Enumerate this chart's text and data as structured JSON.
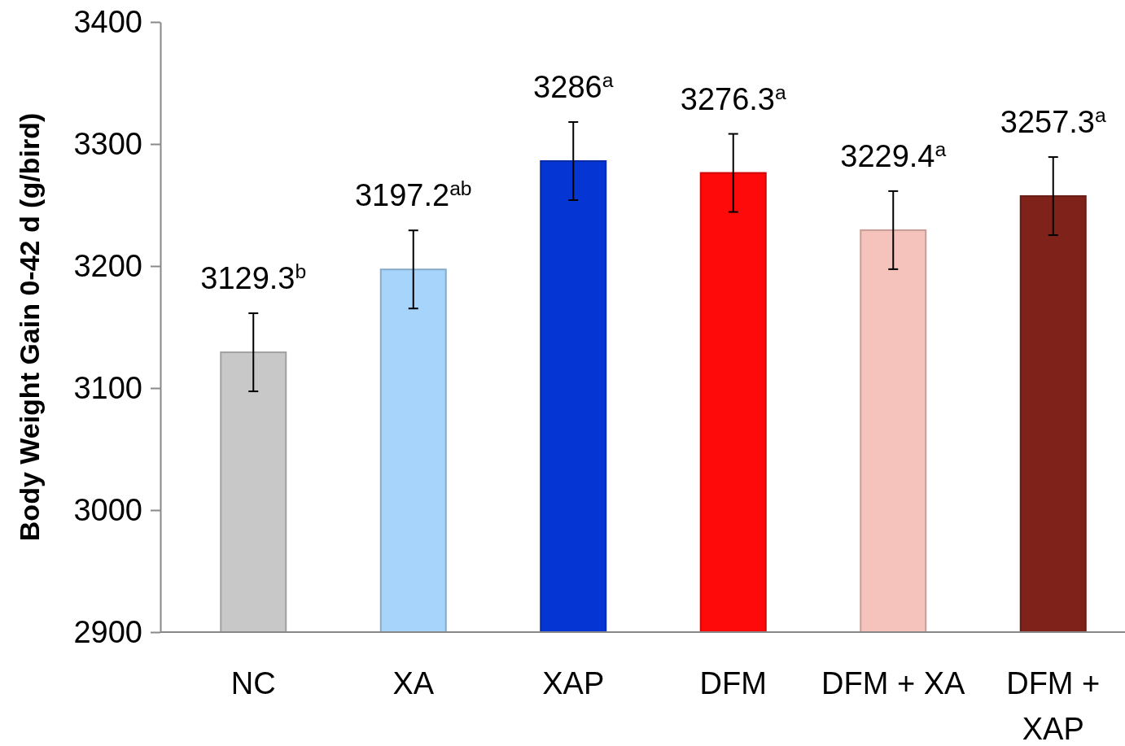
{
  "chart_data": {
    "type": "bar",
    "ylabel": "Body Weight Gain 0-42 d (g/bird)",
    "categories": [
      "NC",
      "XA",
      "XAP",
      "DFM",
      "DFM + XA",
      "DFM + XAP"
    ],
    "values": [
      3129.3,
      3197.2,
      3286,
      3276.3,
      3229.4,
      3257.3
    ],
    "colors": [
      "#c8c8c8",
      "#a6d4fa",
      "#0535d2",
      "#ff0a0a",
      "#f5c3bb",
      "#7f2219"
    ],
    "errors": [
      32,
      32,
      32,
      32,
      32,
      32
    ],
    "value_labels": [
      "3129.3$^{b}$",
      "3197.2$^{ab}$",
      "3286$^{a}$",
      "3276.3$^{a}$",
      "3229.4$^{a}$",
      "3257.3$^{a}$"
    ],
    "ylim": [
      2900,
      3400
    ],
    "yticks": [
      2900,
      3000,
      3100,
      3200,
      3300,
      3400
    ],
    "grid": false
  }
}
